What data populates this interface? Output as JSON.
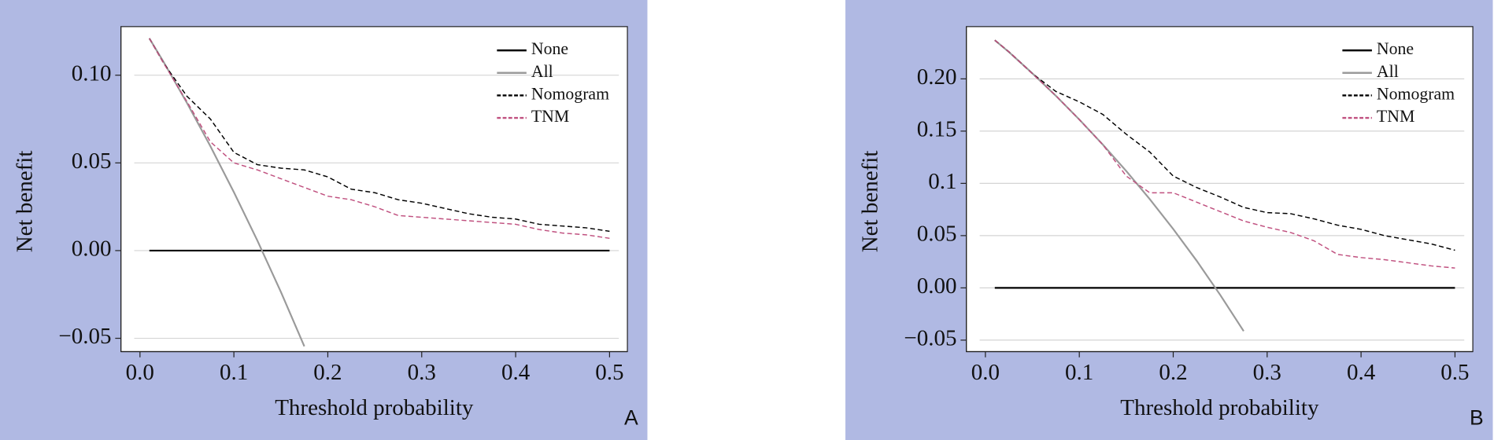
{
  "chart_data": [
    {
      "type": "line",
      "panel_label": "A",
      "xlabel": "Threshold probability",
      "ylabel": "Net benefit",
      "x": [
        0.01,
        0.025,
        0.05,
        0.075,
        0.1,
        0.125,
        0.15,
        0.175,
        0.2,
        0.225,
        0.25,
        0.275,
        0.3,
        0.325,
        0.35,
        0.375,
        0.4,
        0.425,
        0.45,
        0.475,
        0.5
      ],
      "series": [
        {
          "name": "None",
          "color": "#000000",
          "dashed": false,
          "values": [
            0,
            0,
            0,
            0,
            0,
            0,
            0,
            0,
            0,
            0,
            0,
            0,
            0,
            0,
            0,
            0,
            0,
            0,
            0,
            0,
            0
          ]
        },
        {
          "name": "All",
          "color": "#9a9a9a",
          "dashed": false,
          "values": [
            0.121,
            0.1077,
            0.0842,
            0.0595,
            0.0333,
            0.0057,
            -0.0235,
            -0.0546,
            null,
            null,
            null,
            null,
            null,
            null,
            null,
            null,
            null,
            null,
            null,
            null,
            null
          ]
        },
        {
          "name": "Nomogram",
          "color": "#000000",
          "dashed": true,
          "values": [
            0.121,
            0.107,
            0.088,
            0.075,
            0.056,
            0.049,
            0.047,
            0.046,
            0.042,
            0.035,
            0.033,
            0.029,
            0.027,
            0.024,
            0.021,
            0.019,
            0.018,
            0.015,
            0.014,
            0.013,
            0.011
          ]
        },
        {
          "name": "TNM",
          "color": "#c0507f",
          "dashed": true,
          "values": [
            0.121,
            0.107,
            0.085,
            0.062,
            0.05,
            0.046,
            0.041,
            0.036,
            0.031,
            0.029,
            0.025,
            0.02,
            0.019,
            0.018,
            0.017,
            0.016,
            0.015,
            0.012,
            0.01,
            0.009,
            0.007
          ]
        }
      ],
      "xlim": [
        -0.0203,
        0.519
      ],
      "ylim": [
        -0.0576,
        0.1277
      ],
      "xticks": [
        {
          "value": 0,
          "label": "0.0"
        },
        0.1,
        0.2,
        0.3,
        0.4,
        0.5
      ],
      "yticks": [
        {
          "value": -0.05,
          "label": "−0.05"
        },
        {
          "value": 0,
          "label": "0.00"
        },
        0.05,
        {
          "value": 0.1,
          "label": "0.10"
        }
      ],
      "grid": true,
      "legend": "upper right"
    },
    {
      "type": "line",
      "panel_label": "B",
      "xlabel": "Threshold probability",
      "ylabel": "Net benefit",
      "x": [
        0.01,
        0.025,
        0.05,
        0.075,
        0.1,
        0.125,
        0.15,
        0.175,
        0.2,
        0.225,
        0.25,
        0.275,
        0.3,
        0.325,
        0.35,
        0.375,
        0.4,
        0.425,
        0.45,
        0.475,
        0.5
      ],
      "series": [
        {
          "name": "None",
          "color": "#000000",
          "dashed": false,
          "values": [
            0,
            0,
            0,
            0,
            0,
            0,
            0,
            0,
            0,
            0,
            0,
            0,
            0,
            0,
            0,
            0,
            0,
            0,
            0,
            0,
            0
          ]
        },
        {
          "name": "All",
          "color": "#9a9a9a",
          "dashed": false,
          "values": [
            0.237,
            0.2257,
            0.2053,
            0.1838,
            0.1611,
            0.1371,
            0.1118,
            0.0849,
            0.0563,
            0.0259,
            -0.0067,
            -0.0414,
            null,
            null,
            null,
            null,
            null,
            null,
            null,
            null,
            null
          ]
        },
        {
          "name": "Nomogram",
          "color": "#000000",
          "dashed": true,
          "values": [
            0.237,
            0.226,
            0.205,
            0.188,
            0.178,
            0.166,
            0.147,
            0.13,
            0.107,
            0.096,
            0.087,
            0.077,
            0.072,
            0.071,
            0.066,
            0.06,
            0.056,
            0.05,
            0.046,
            0.042,
            0.036
          ]
        },
        {
          "name": "TNM",
          "color": "#c0507f",
          "dashed": true,
          "values": [
            0.237,
            0.226,
            0.205,
            0.184,
            0.161,
            0.137,
            0.107,
            0.091,
            0.091,
            0.082,
            0.073,
            0.064,
            0.058,
            0.053,
            0.045,
            0.032,
            0.029,
            0.027,
            0.024,
            0.021,
            0.019
          ]
        }
      ],
      "xlim": [
        -0.0203,
        0.519
      ],
      "ylim": [
        -0.061,
        0.25
      ],
      "xticks": [
        {
          "value": 0,
          "label": "0.0"
        },
        0.1,
        0.2,
        0.3,
        0.4,
        0.5
      ],
      "yticks": [
        {
          "value": -0.05,
          "label": "−0.05"
        },
        {
          "value": 0,
          "label": "0.00"
        },
        0.05,
        0.1,
        0.15,
        {
          "value": 0.2,
          "label": "0.20"
        }
      ],
      "grid": true,
      "legend": "upper right"
    }
  ]
}
